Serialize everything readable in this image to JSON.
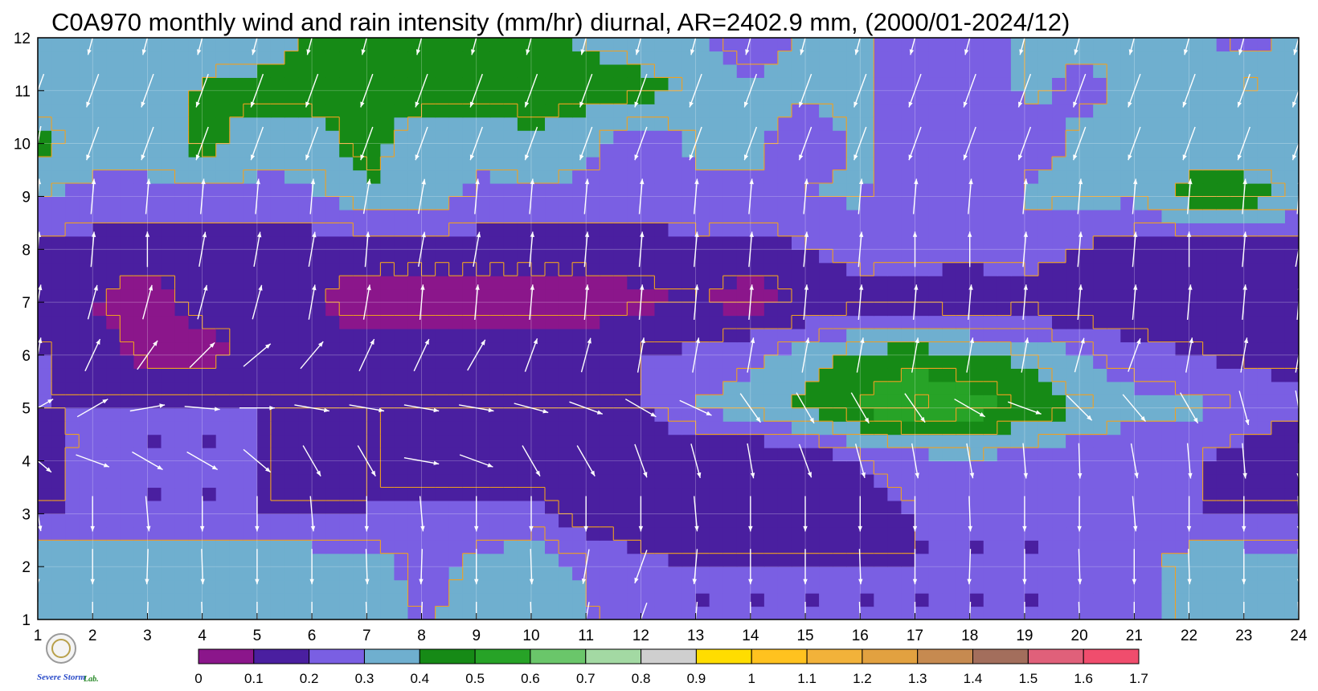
{
  "chart_data": {
    "type": "heatmap",
    "title": "C0A970 monthly wind and rain intensity (mm/hr) diurnal, AR=2402.9 mm, (2000/01-2024/12)",
    "xlabel": "",
    "ylabel": "",
    "x_ticks": [
      "1",
      "2",
      "3",
      "4",
      "5",
      "6",
      "7",
      "8",
      "9",
      "10",
      "11",
      "12",
      "13",
      "14",
      "15",
      "16",
      "17",
      "18",
      "19",
      "20",
      "21",
      "22",
      "23",
      "24"
    ],
    "y_ticks": [
      "1",
      "2",
      "3",
      "4",
      "5",
      "6",
      "7",
      "8",
      "9",
      "10",
      "11",
      "12"
    ],
    "xlim": [
      1,
      24
    ],
    "ylim": [
      1,
      12
    ],
    "grid": true,
    "colorbar": {
      "labels": [
        "0",
        "0.1",
        "0.2",
        "0.3",
        "0.4",
        "0.5",
        "0.6",
        "0.7",
        "0.8",
        "0.9",
        "1",
        "1.1",
        "1.2",
        "1.3",
        "1.4",
        "1.5",
        "1.6",
        "1.7"
      ],
      "colors": [
        "#8b168b",
        "#4a1fa0",
        "#7a5fe3",
        "#6fafcf",
        "#168a16",
        "#27a327",
        "#6ac66a",
        "#a3d9a3",
        "#cfcfcf",
        "#ffdd00",
        "#ffc21f",
        "#f2b23a",
        "#e2a140",
        "#c68a50",
        "#a36e5c",
        "#e0607a",
        "#f04d6d",
        "#d8283f"
      ]
    },
    "intensity_grid": [
      [
        0.36,
        0.36,
        0.36,
        0.36,
        0.36,
        0.36,
        0.35,
        0.29,
        0.33,
        0.36,
        0.3,
        0.2,
        0.2,
        0.2,
        0.2,
        0.2,
        0.2,
        0.2,
        0.2,
        0.2,
        0.2,
        0.36,
        0.35,
        0.29
      ],
      [
        0.36,
        0.36,
        0.36,
        0.36,
        0.36,
        0.36,
        0.35,
        0.26,
        0.33,
        0.36,
        0.29,
        0.22,
        0.2,
        0.2,
        0.2,
        0.2,
        0.2,
        0.2,
        0.2,
        0.2,
        0.25,
        0.36,
        0.36,
        0.35
      ],
      [
        0.2,
        0.2,
        0.2,
        0.2,
        0.2,
        0.2,
        0.2,
        0.22,
        0.22,
        0.24,
        0.13,
        0.12,
        0.11,
        0.1,
        0.11,
        0.16,
        0.2,
        0.2,
        0.2,
        0.2,
        0.2,
        0.2,
        0.2,
        0.2
      ],
      [
        0.15,
        0.25,
        0.2,
        0.2,
        0.2,
        0.1,
        0.2,
        0.16,
        0.15,
        0.12,
        0.1,
        0.1,
        0.1,
        0.1,
        0.12,
        0.2,
        0.25,
        0.3,
        0.24,
        0.22,
        0.2,
        0.21,
        0.15,
        0.1
      ],
      [
        0.2,
        0.2,
        0.2,
        0.2,
        0.2,
        0.2,
        0.2,
        0.2,
        0.2,
        0.2,
        0.2,
        0.2,
        0.31,
        0.35,
        0.42,
        0.52,
        0.6,
        0.55,
        0.48,
        0.4,
        0.35,
        0.32,
        0.28,
        0.22
      ],
      [
        0.21,
        0.15,
        0.05,
        0.06,
        0.15,
        0.15,
        0.15,
        0.18,
        0.15,
        0.16,
        0.17,
        0.2,
        0.22,
        0.28,
        0.34,
        0.42,
        0.45,
        0.42,
        0.38,
        0.3,
        0.22,
        0.2,
        0.16,
        0.18
      ],
      [
        0.15,
        0.1,
        0.05,
        0.15,
        0.1,
        0.1,
        0.05,
        0.05,
        0.05,
        0.05,
        0.05,
        0.08,
        0.1,
        0.05,
        0.12,
        0.15,
        0.13,
        0.1,
        0.15,
        0.1,
        0.15,
        0.15,
        0.15,
        0.15
      ],
      [
        0.18,
        0.15,
        0.15,
        0.15,
        0.15,
        0.15,
        0.15,
        0.15,
        0.15,
        0.15,
        0.15,
        0.15,
        0.18,
        0.15,
        0.2,
        0.25,
        0.25,
        0.25,
        0.26,
        0.2,
        0.15,
        0.12,
        0.12,
        0.15
      ],
      [
        0.3,
        0.28,
        0.28,
        0.28,
        0.28,
        0.28,
        0.38,
        0.38,
        0.28,
        0.28,
        0.28,
        0.25,
        0.28,
        0.28,
        0.3,
        0.31,
        0.2,
        0.2,
        0.32,
        0.32,
        0.32,
        0.45,
        0.45,
        0.38
      ],
      [
        0.45,
        0.32,
        0.32,
        0.45,
        0.32,
        0.35,
        0.45,
        0.32,
        0.32,
        0.38,
        0.32,
        0.22,
        0.32,
        0.32,
        0.25,
        0.32,
        0.22,
        0.22,
        0.25,
        0.32,
        0.32,
        0.32,
        0.32,
        0.32
      ],
      [
        0.32,
        0.32,
        0.32,
        0.42,
        0.45,
        0.45,
        0.45,
        0.45,
        0.45,
        0.45,
        0.45,
        0.45,
        0.35,
        0.32,
        0.32,
        0.32,
        0.22,
        0.22,
        0.32,
        0.28,
        0.32,
        0.32,
        0.42,
        0.32
      ],
      [
        0.32,
        0.32,
        0.32,
        0.32,
        0.32,
        0.42,
        0.45,
        0.45,
        0.42,
        0.45,
        0.38,
        0.32,
        0.32,
        0.25,
        0.32,
        0.32,
        0.22,
        0.22,
        0.32,
        0.32,
        0.32,
        0.32,
        0.25,
        0.32
      ]
    ],
    "wind_angle_deg": [
      [
        180,
        180,
        182,
        178,
        180,
        180,
        178,
        182,
        180,
        178,
        190,
        200,
        185,
        180,
        180,
        178,
        180,
        182,
        180,
        178,
        180,
        178,
        180,
        178
      ],
      [
        180,
        180,
        182,
        178,
        180,
        180,
        178,
        182,
        180,
        178,
        190,
        200,
        185,
        180,
        180,
        178,
        180,
        182,
        180,
        178,
        180,
        178,
        180,
        178
      ],
      [
        170,
        180,
        175,
        180,
        180,
        175,
        180,
        175,
        180,
        180,
        180,
        180,
        175,
        180,
        180,
        180,
        180,
        178,
        180,
        180,
        175,
        180,
        180,
        178
      ],
      [
        130,
        110,
        120,
        120,
        130,
        150,
        150,
        100,
        110,
        150,
        150,
        160,
        165,
        170,
        160,
        165,
        170,
        170,
        175,
        178,
        170,
        175,
        175,
        180
      ],
      [
        60,
        60,
        80,
        95,
        90,
        100,
        100,
        100,
        100,
        105,
        110,
        120,
        115,
        145,
        150,
        150,
        145,
        120,
        110,
        135,
        140,
        150,
        165,
        170
      ],
      [
        10,
        25,
        35,
        45,
        50,
        40,
        25,
        25,
        30,
        20,
        15,
        10,
        10,
        10,
        10,
        10,
        10,
        10,
        10,
        15,
        20,
        10,
        10,
        10
      ],
      [
        10,
        15,
        15,
        15,
        15,
        10,
        10,
        5,
        5,
        5,
        5,
        5,
        5,
        5,
        5,
        5,
        5,
        5,
        5,
        5,
        5,
        5,
        5,
        5
      ],
      [
        5,
        5,
        0,
        10,
        10,
        10,
        5,
        10,
        10,
        5,
        5,
        5,
        5,
        5,
        5,
        5,
        0,
        0,
        5,
        5,
        5,
        0,
        5,
        10
      ],
      [
        5,
        5,
        5,
        5,
        5,
        5,
        10,
        10,
        5,
        5,
        5,
        5,
        5,
        5,
        5,
        5,
        5,
        5,
        5,
        5,
        5,
        5,
        5,
        5
      ],
      [
        190,
        200,
        200,
        200,
        200,
        200,
        200,
        200,
        200,
        200,
        200,
        200,
        200,
        200,
        200,
        200,
        200,
        200,
        200,
        200,
        200,
        200,
        200,
        200
      ],
      [
        200,
        200,
        200,
        200,
        200,
        200,
        200,
        200,
        200,
        200,
        200,
        200,
        200,
        200,
        200,
        200,
        200,
        200,
        200,
        200,
        200,
        200,
        200,
        200
      ],
      [
        200,
        195,
        195,
        195,
        195,
        195,
        195,
        195,
        195,
        195,
        195,
        195,
        195,
        195,
        195,
        195,
        195,
        195,
        195,
        195,
        195,
        195,
        195,
        195
      ]
    ]
  },
  "logo": {
    "label_main": "Severe Storm",
    "label_sub": "Lab."
  }
}
